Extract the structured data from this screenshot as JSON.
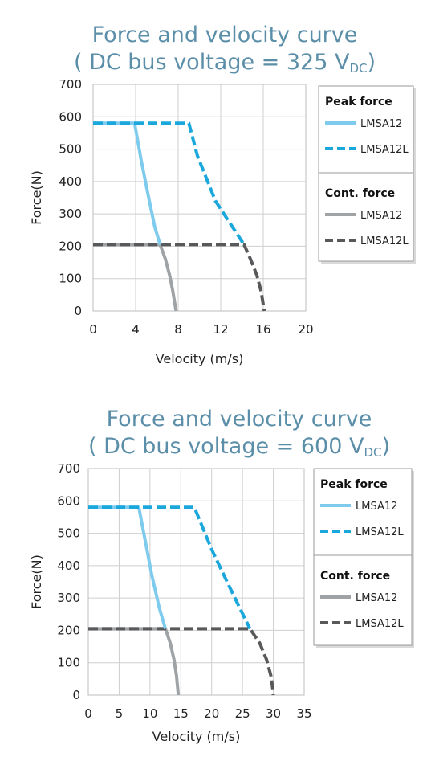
{
  "chart_data": [
    {
      "type": "line",
      "title": "Force and velocity curve",
      "subtitle": {
        "prefix": "( DC bus voltage = 325 V",
        "subscript": "DC",
        "suffix": ")"
      },
      "xlabel": "Velocity (m/s)",
      "ylabel": "Force(N)",
      "xlim": [
        0,
        20
      ],
      "ylim": [
        0,
        700
      ],
      "xticks": [
        0,
        4,
        8,
        12,
        16,
        20
      ],
      "yticks": [
        0,
        100,
        200,
        300,
        400,
        500,
        600,
        700
      ],
      "grid": true,
      "legend_position": "right",
      "legend": {
        "groups": [
          {
            "heading": "Peak force",
            "items": [
              "LMSA12",
              "LMSA12L"
            ]
          },
          {
            "heading": "Cont. force",
            "items": [
              "LMSA12",
              "LMSA12L"
            ]
          }
        ]
      },
      "series": [
        {
          "name": "LMSA12",
          "group": "Peak force",
          "color": "#7fcbee",
          "dash": false,
          "x": [
            0,
            3.9,
            4.5,
            5.1,
            5.8,
            6.3
          ],
          "y": [
            580,
            580,
            470,
            370,
            260,
            205
          ]
        },
        {
          "name": "LMSA12L",
          "group": "Peak force",
          "color": "#1aa7dc",
          "dash": true,
          "x": [
            0,
            9.0,
            9.8,
            11.5,
            13.3,
            14.2
          ],
          "y": [
            580,
            580,
            480,
            340,
            250,
            205
          ]
        },
        {
          "name": "LMSA12",
          "group": "Cont. force",
          "color": "#a0a3a6",
          "dash": false,
          "x": [
            0,
            6.3,
            6.8,
            7.2,
            7.5,
            7.7,
            7.8
          ],
          "y": [
            205,
            205,
            160,
            110,
            60,
            20,
            0
          ]
        },
        {
          "name": "LMSA12L",
          "group": "Cont. force",
          "color": "#58595b",
          "dash": true,
          "x": [
            0,
            14.2,
            14.8,
            15.4,
            15.8,
            16.0,
            16.1
          ],
          "y": [
            205,
            205,
            160,
            110,
            60,
            20,
            0
          ]
        }
      ]
    },
    {
      "type": "line",
      "title": "Force and velocity curve",
      "subtitle": {
        "prefix": "( DC bus voltage = 600 V",
        "subscript": "DC",
        "suffix": ")"
      },
      "xlabel": "Velocity (m/s)",
      "ylabel": "Force(N)",
      "xlim": [
        0,
        35
      ],
      "ylim": [
        0,
        700
      ],
      "xticks": [
        0,
        5,
        10,
        15,
        20,
        25,
        30,
        35
      ],
      "yticks": [
        0,
        100,
        200,
        300,
        400,
        500,
        600,
        700
      ],
      "grid": true,
      "legend_position": "right",
      "legend": {
        "groups": [
          {
            "heading": "Peak force",
            "items": [
              "LMSA12",
              "LMSA12L"
            ]
          },
          {
            "heading": "Cont. force",
            "items": [
              "LMSA12",
              "LMSA12L"
            ]
          }
        ]
      },
      "series": [
        {
          "name": "LMSA12",
          "group": "Peak force",
          "color": "#7fcbee",
          "dash": false,
          "x": [
            0,
            8.2,
            9.3,
            10.3,
            11.5,
            12.5
          ],
          "y": [
            580,
            580,
            470,
            370,
            270,
            205
          ]
        },
        {
          "name": "LMSA12L",
          "group": "Peak force",
          "color": "#1aa7dc",
          "dash": true,
          "x": [
            0,
            17.2,
            20.0,
            23.0,
            26.2
          ],
          "y": [
            580,
            580,
            450,
            330,
            205
          ]
        },
        {
          "name": "LMSA12",
          "group": "Cont. force",
          "color": "#a0a3a6",
          "dash": false,
          "x": [
            0,
            12.5,
            13.3,
            13.9,
            14.3,
            14.5,
            14.6
          ],
          "y": [
            205,
            205,
            160,
            110,
            60,
            20,
            0
          ]
        },
        {
          "name": "LMSA12L",
          "group": "Cont. force",
          "color": "#58595b",
          "dash": true,
          "x": [
            0,
            26.2,
            27.8,
            28.9,
            29.6,
            29.9,
            30.0
          ],
          "y": [
            205,
            205,
            160,
            110,
            60,
            20,
            0
          ]
        }
      ]
    }
  ]
}
